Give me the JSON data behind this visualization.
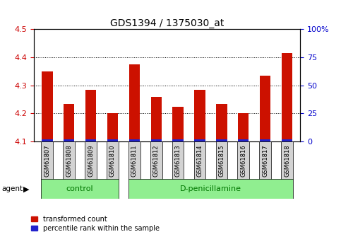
{
  "title": "GDS1394 / 1375030_at",
  "samples": [
    "GSM61807",
    "GSM61808",
    "GSM61809",
    "GSM61810",
    "GSM61811",
    "GSM61812",
    "GSM61813",
    "GSM61814",
    "GSM61815",
    "GSM61816",
    "GSM61817",
    "GSM61818"
  ],
  "red_values": [
    4.35,
    4.235,
    4.285,
    4.2,
    4.375,
    4.26,
    4.225,
    4.285,
    4.235,
    4.2,
    4.335,
    4.415
  ],
  "blue_sliver": 0.008,
  "base": 4.1,
  "ylim_left": [
    4.1,
    4.5
  ],
  "yticks_left": [
    4.1,
    4.2,
    4.3,
    4.4,
    4.5
  ],
  "yticks_right": [
    0,
    25,
    50,
    75,
    100
  ],
  "ylim_right": [
    0,
    100
  ],
  "groups": [
    {
      "label": "control",
      "start": 0,
      "end": 3
    },
    {
      "label": "D-penicillamine",
      "start": 4,
      "end": 11
    }
  ],
  "bar_color_red": "#cc1100",
  "bar_color_blue": "#2222cc",
  "bar_width": 0.5,
  "plot_bg_color": "#ffffff",
  "tick_label_color_left": "#cc0000",
  "tick_label_color_right": "#0000cc",
  "xlabel_bg": "#d3d3d3",
  "legend_red_label": "transformed count",
  "legend_blue_label": "percentile rank within the sample",
  "agent_label": "agent",
  "group_bg": "#90ee90",
  "group_text_color": "#007700"
}
